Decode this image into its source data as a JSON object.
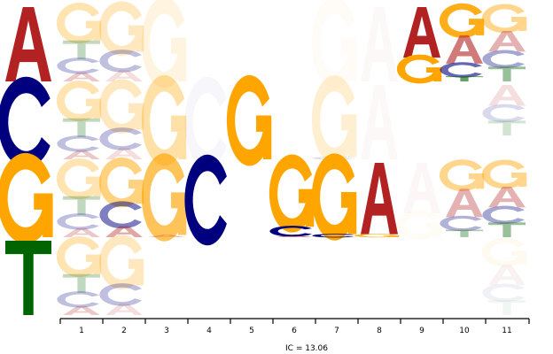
{
  "chart_data": {
    "type": "sequence-logo",
    "xlabel": "IC = 13.06",
    "categories": [
      "1",
      "2",
      "3",
      "4",
      "5",
      "6",
      "7",
      "8",
      "9",
      "10",
      "11"
    ],
    "colors": {
      "A": "#b22222",
      "C": "#00007f",
      "G": "#ffa500",
      "T": "#006400"
    },
    "key_letters": [
      {
        "letter": "A",
        "row": 0
      },
      {
        "letter": "C",
        "row": 1
      },
      {
        "letter": "G",
        "row": 2
      },
      {
        "letter": "T",
        "row": 3
      }
    ],
    "positions": [
      {
        "pos": "1",
        "rows": [
          [
            {
              "l": "G",
              "h": 0.45,
              "o": 0.3
            },
            {
              "l": "T",
              "h": 0.25,
              "o": 0.25
            },
            {
              "l": "C",
              "h": 0.18,
              "o": 0.25
            },
            {
              "l": "A",
              "h": 0.12,
              "o": 0.25
            }
          ],
          [
            {
              "l": "G",
              "h": 0.45,
              "o": 0.3
            },
            {
              "l": "T",
              "h": 0.25,
              "o": 0.25
            },
            {
              "l": "C",
              "h": 0.18,
              "o": 0.25
            },
            {
              "l": "A",
              "h": 0.12,
              "o": 0.25
            }
          ],
          [
            {
              "l": "G",
              "h": 0.45,
              "o": 0.3
            },
            {
              "l": "T",
              "h": 0.25,
              "o": 0.25
            },
            {
              "l": "C",
              "h": 0.18,
              "o": 0.25
            },
            {
              "l": "A",
              "h": 0.12,
              "o": 0.25
            }
          ],
          [
            {
              "l": "G",
              "h": 0.45,
              "o": 0.3
            },
            {
              "l": "T",
              "h": 0.25,
              "o": 0.25
            },
            {
              "l": "C",
              "h": 0.18,
              "o": 0.25
            },
            {
              "l": "A",
              "h": 0.12,
              "o": 0.25
            }
          ]
        ]
      },
      {
        "pos": "2",
        "rows": [
          [
            {
              "l": "G",
              "h": 0.6,
              "o": 0.25
            },
            {
              "l": "C",
              "h": 0.25,
              "o": 0.25
            },
            {
              "l": "A",
              "h": 0.15,
              "o": 0.15
            }
          ],
          [
            {
              "l": "G",
              "h": 0.6,
              "o": 0.25
            },
            {
              "l": "C",
              "h": 0.25,
              "o": 0.25
            },
            {
              "l": "A",
              "h": 0.15,
              "o": 0.15
            }
          ],
          [
            {
              "l": "G",
              "h": 0.55,
              "o": 0.5
            },
            {
              "l": "C",
              "h": 0.3,
              "o": 0.5
            },
            {
              "l": "A",
              "h": 0.15,
              "o": 0.4
            }
          ],
          [
            {
              "l": "G",
              "h": 0.6,
              "o": 0.25
            },
            {
              "l": "C",
              "h": 0.25,
              "o": 0.25
            },
            {
              "l": "A",
              "h": 0.15,
              "o": 0.15
            }
          ]
        ]
      },
      {
        "pos": "3",
        "rows": [
          [
            {
              "l": "G",
              "h": 1.0,
              "o": 0.12
            }
          ],
          [
            {
              "l": "G",
              "h": 1.0,
              "o": 0.35
            }
          ],
          [
            {
              "l": "G",
              "h": 0.97,
              "o": 0.65
            },
            {
              "l": "A",
              "h": 0.03,
              "o": 0.3
            }
          ],
          []
        ]
      },
      {
        "pos": "4",
        "rows": [
          [],
          [
            {
              "l": "C",
              "h": 1.0,
              "o": 0.03
            }
          ],
          [
            {
              "l": "C",
              "h": 1.0,
              "o": 1.0
            }
          ],
          []
        ]
      },
      {
        "pos": "5",
        "rows": [
          [],
          [
            {
              "l": "G",
              "h": 1.0,
              "o": 1.0
            }
          ],
          [],
          []
        ]
      },
      {
        "pos": "6",
        "rows": [
          [],
          [],
          [
            {
              "l": "G",
              "h": 0.86,
              "o": 1.0
            },
            {
              "l": "C",
              "h": 0.12,
              "o": 1.0
            },
            {
              "l": "A",
              "h": 0.02,
              "o": 0.6
            }
          ],
          []
        ]
      },
      {
        "pos": "7",
        "rows": [
          [
            {
              "l": "G",
              "h": 1.0,
              "o": 0.03
            }
          ],
          [
            {
              "l": "G",
              "h": 0.97,
              "o": 0.18
            },
            {
              "l": "C",
              "h": 0.03,
              "o": 0.15
            }
          ],
          [
            {
              "l": "G",
              "h": 0.96,
              "o": 1.0
            },
            {
              "l": "C",
              "h": 0.04,
              "o": 1.0
            }
          ],
          []
        ]
      },
      {
        "pos": "8",
        "rows": [
          [
            {
              "l": "A",
              "h": 1.0,
              "o": 0.03
            }
          ],
          [
            {
              "l": "A",
              "h": 1.0,
              "o": 0.03
            }
          ],
          [
            {
              "l": "A",
              "h": 0.96,
              "o": 1.0
            },
            {
              "l": "G",
              "h": 0.04,
              "o": 0.8
            }
          ],
          []
        ]
      },
      {
        "pos": "9",
        "rows": [
          [
            {
              "l": "A",
              "h": 0.68,
              "o": 1.0
            },
            {
              "l": "G",
              "h": 0.32,
              "o": 1.0
            }
          ],
          [],
          [
            {
              "l": "A",
              "h": 0.68,
              "o": 0.04
            },
            {
              "l": "G",
              "h": 0.32,
              "o": 0.04
            }
          ],
          []
        ]
      },
      {
        "pos": "10",
        "rows": [
          [
            {
              "l": "G",
              "h": 0.38,
              "o": 0.9
            },
            {
              "l": "A",
              "h": 0.38,
              "o": 0.6
            },
            {
              "l": "C",
              "h": 0.17,
              "o": 0.6
            },
            {
              "l": "T",
              "h": 0.07,
              "o": 0.6
            }
          ],
          [],
          [
            {
              "l": "G",
              "h": 0.35,
              "o": 0.45
            },
            {
              "l": "A",
              "h": 0.38,
              "o": 0.35
            },
            {
              "l": "C",
              "h": 0.17,
              "o": 0.3
            },
            {
              "l": "T",
              "h": 0.1,
              "o": 0.35
            }
          ],
          []
        ]
      },
      {
        "pos": "11",
        "rows": [
          [
            {
              "l": "G",
              "h": 0.32,
              "o": 0.45
            },
            {
              "l": "A",
              "h": 0.28,
              "o": 0.35
            },
            {
              "l": "C",
              "h": 0.2,
              "o": 0.35
            },
            {
              "l": "T",
              "h": 0.2,
              "o": 0.4
            }
          ],
          [
            {
              "l": "A",
              "h": 0.28,
              "o": 0.15
            },
            {
              "l": "C",
              "h": 0.2,
              "o": 0.15
            },
            {
              "l": "T",
              "h": 0.2,
              "o": 0.18
            }
          ],
          [
            {
              "l": "G",
              "h": 0.32,
              "o": 0.45
            },
            {
              "l": "A",
              "h": 0.28,
              "o": 0.35
            },
            {
              "l": "C",
              "h": 0.2,
              "o": 0.35
            },
            {
              "l": "T",
              "h": 0.2,
              "o": 0.4
            }
          ],
          [
            {
              "l": "G",
              "h": 0.32,
              "o": 0.06
            },
            {
              "l": "A",
              "h": 0.28,
              "o": 0.06
            },
            {
              "l": "C",
              "h": 0.2,
              "o": 0.06
            },
            {
              "l": "T",
              "h": 0.2,
              "o": 0.06
            }
          ]
        ]
      }
    ]
  }
}
